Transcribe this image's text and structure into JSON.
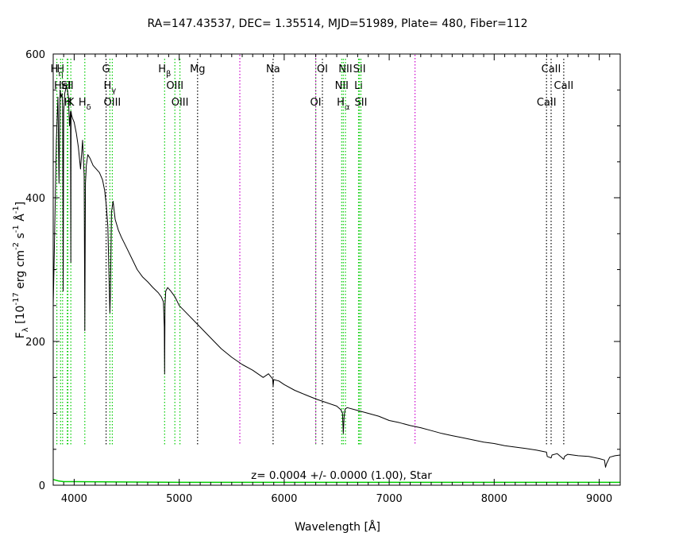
{
  "chart_data": {
    "type": "line",
    "title": "RA=147.43537, DEC= 1.35514, MJD=51989, Plate= 480, Fiber=112",
    "xlabel": "Wavelength [Å]",
    "ylabel": "F_λ [10^-17 erg cm^-2 s^-1 Å^-1]",
    "xlim": [
      3800,
      9200
    ],
    "ylim": [
      0,
      600
    ],
    "xticks": [
      4000,
      5000,
      6000,
      7000,
      8000,
      9000
    ],
    "yticks": [
      0,
      200,
      400,
      600
    ],
    "grid": false,
    "redshift_label": "z= 0.0004 +/- 0.0000 (1.00), Star",
    "colors": {
      "spectrum": "#000000",
      "emission_line": "#00cc00",
      "absorption_line": "#000000",
      "sky_line": "#cc00cc",
      "error_curve": "#00cc00"
    },
    "series": [
      {
        "role": "spectrum",
        "x": [
          3800,
          3810,
          3830,
          3840,
          3845,
          3855,
          3865,
          3875,
          3885,
          3890,
          3895,
          3900,
          3910,
          3925,
          3935,
          3945,
          3955,
          3965,
          3968,
          3970,
          3975,
          3985,
          4000,
          4020,
          4040,
          4060,
          4080,
          4095,
          4101,
          4107,
          4115,
          4130,
          4150,
          4180,
          4210,
          4240,
          4270,
          4290,
          4305,
          4320,
          4335,
          4340,
          4345,
          4355,
          4370,
          4390,
          4420,
          4450,
          4500,
          4550,
          4600,
          4650,
          4700,
          4750,
          4800,
          4830,
          4850,
          4858,
          4861,
          4865,
          4872,
          4890,
          4920,
          4960,
          5000,
          5100,
          5200,
          5300,
          5400,
          5500,
          5600,
          5700,
          5800,
          5850,
          5890,
          5895,
          5900,
          5950,
          6000,
          6100,
          6200,
          6300,
          6400,
          6500,
          6540,
          6555,
          6563,
          6570,
          6580,
          6600,
          6700,
          6800,
          6900,
          7000,
          7100,
          7200,
          7300,
          7400,
          7500,
          7600,
          7700,
          7800,
          7900,
          8000,
          8100,
          8200,
          8300,
          8400,
          8498,
          8505,
          8542,
          8550,
          8600,
          8662,
          8670,
          8700,
          8800,
          8900,
          9000,
          9050,
          9060,
          9070,
          9100,
          9150,
          9200
        ],
        "y": [
          250,
          320,
          480,
          520,
          540,
          420,
          550,
          540,
          545,
          520,
          270,
          520,
          545,
          555,
          550,
          540,
          500,
          520,
          310,
          520,
          515,
          510,
          505,
          490,
          470,
          440,
          480,
          430,
          215,
          420,
          445,
          460,
          455,
          445,
          440,
          435,
          425,
          410,
          390,
          360,
          270,
          240,
          270,
          380,
          395,
          370,
          355,
          345,
          330,
          315,
          300,
          290,
          283,
          275,
          268,
          262,
          255,
          220,
          155,
          250,
          270,
          275,
          270,
          262,
          250,
          235,
          220,
          205,
          190,
          178,
          168,
          160,
          150,
          155,
          148,
          138,
          147,
          145,
          140,
          132,
          126,
          120,
          115,
          110,
          105,
          100,
          72,
          95,
          106,
          108,
          104,
          100,
          96,
          90,
          87,
          83,
          80,
          76,
          72,
          69,
          66,
          63,
          60,
          58,
          55,
          53,
          51,
          49,
          46,
          40,
          38,
          42,
          44,
          36,
          40,
          43,
          41,
          40,
          37,
          35,
          25,
          30,
          39,
          41,
          42
        ]
      },
      {
        "role": "error",
        "x": [
          3800,
          3850,
          3900,
          4000,
          5000,
          6000,
          7000,
          8000,
          9000,
          9200
        ],
        "y": [
          8,
          6,
          5,
          5,
          4,
          4,
          4,
          4,
          4,
          4
        ]
      }
    ],
    "lines": [
      {
        "label": "H_η",
        "wavelength": 3835,
        "color": "#00cc00",
        "row": 0
      },
      {
        "label": "H",
        "wavelength": 3870,
        "color": "#00cc00",
        "row": 0
      },
      {
        "label": "HeI",
        "wavelength": 3889,
        "color": "#00cc00",
        "row": 1
      },
      {
        "label": "SII",
        "wavelength": 3934,
        "color": "#00cc00",
        "row": 1
      },
      {
        "label": "H",
        "wavelength": 3940,
        "color": "#00cc00",
        "row": 2
      },
      {
        "label": "K",
        "wavelength": 3968,
        "color": "#00cc00",
        "row": 2
      },
      {
        "label": "H_δ",
        "wavelength": 4101,
        "color": "#00cc00",
        "row": 2
      },
      {
        "label": "G",
        "wavelength": 4304,
        "color": "#000000",
        "row": 0
      },
      {
        "label": "H_γ",
        "wavelength": 4340,
        "color": "#00cc00",
        "row": 1
      },
      {
        "label": "OIII",
        "wavelength": 4363,
        "color": "#00cc00",
        "row": 2
      },
      {
        "label": "H_β",
        "wavelength": 4861,
        "color": "#00cc00",
        "row": 0
      },
      {
        "label": "OIII",
        "wavelength": 4959,
        "color": "#00cc00",
        "row": 1
      },
      {
        "label": "OIII",
        "wavelength": 5007,
        "color": "#00cc00",
        "row": 2
      },
      {
        "label": "Mg",
        "wavelength": 5175,
        "color": "#000000",
        "row": 0
      },
      {
        "label": "Na",
        "wavelength": 5894,
        "color": "#000000",
        "row": 0
      },
      {
        "label": "OI",
        "wavelength": 6300,
        "color": "#00cc00",
        "row": 2
      },
      {
        "label": "OI",
        "wavelength": 6364,
        "color": "#000000",
        "row": 0
      },
      {
        "label": "NII",
        "wavelength": 6548,
        "color": "#00cc00",
        "row": 1
      },
      {
        "label": "H_α",
        "wavelength": 6563,
        "color": "#00cc00",
        "row": 2
      },
      {
        "label": "NII",
        "wavelength": 6583,
        "color": "#00cc00",
        "row": 0
      },
      {
        "label": "Li",
        "wavelength": 6708,
        "color": "#00cc00",
        "row": 1
      },
      {
        "label": "SII",
        "wavelength": 6716,
        "color": "#00cc00",
        "row": 0
      },
      {
        "label": "SII",
        "wavelength": 6731,
        "color": "#00cc00",
        "row": 2
      },
      {
        "label": "CaII",
        "wavelength": 8498,
        "color": "#000000",
        "row": 2
      },
      {
        "label": "CaII",
        "wavelength": 8542,
        "color": "#000000",
        "row": 0
      },
      {
        "label": "CaII",
        "wavelength": 8662,
        "color": "#000000",
        "row": 1
      },
      {
        "label": "",
        "wavelength": 5577,
        "color": "#cc00cc",
        "row": -1
      },
      {
        "label": "",
        "wavelength": 6300,
        "color": "#cc00cc",
        "row": -1
      },
      {
        "label": "",
        "wavelength": 7246,
        "color": "#cc00cc",
        "row": -1
      }
    ]
  }
}
